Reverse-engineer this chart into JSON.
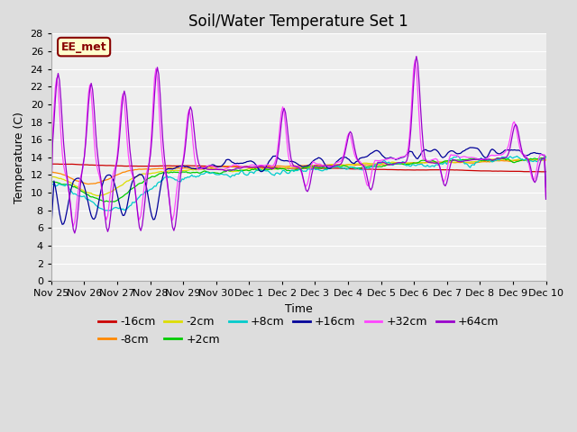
{
  "title": "Soil/Water Temperature Set 1",
  "xlabel": "Time",
  "ylabel": "Temperature (C)",
  "ylim": [
    0,
    28
  ],
  "yticks": [
    0,
    2,
    4,
    6,
    8,
    10,
    12,
    14,
    16,
    18,
    20,
    22,
    24,
    26,
    28
  ],
  "series": [
    {
      "label": "-16cm",
      "color": "#cc0000"
    },
    {
      "label": "-8cm",
      "color": "#ff8800"
    },
    {
      "label": "-2cm",
      "color": "#dddd00"
    },
    {
      "label": "+2cm",
      "color": "#00cc00"
    },
    {
      "label": "+8cm",
      "color": "#00cccc"
    },
    {
      "label": "+16cm",
      "color": "#000099"
    },
    {
      "label": "+32cm",
      "color": "#ff44ff"
    },
    {
      "label": "+64cm",
      "color": "#9900cc"
    }
  ],
  "annotation_text": "EE_met",
  "annotation_color": "#880000",
  "annotation_bg": "#ffffcc",
  "bg_color": "#dddddd",
  "plot_bg": "#eeeeee",
  "grid_color": "#ffffff",
  "title_fontsize": 12,
  "axis_fontsize": 8,
  "label_fontsize": 9,
  "legend_fontsize": 9,
  "days": [
    "Nov 25",
    "Nov 26",
    "Nov 27",
    "Nov 28",
    "Nov 29",
    "Nov 30",
    "Dec 1",
    "Dec 2",
    "Dec 3",
    "Dec 4",
    "Dec 5",
    "Dec 6",
    "Dec 7",
    "Dec 8",
    "Dec 9",
    "Dec 10"
  ]
}
